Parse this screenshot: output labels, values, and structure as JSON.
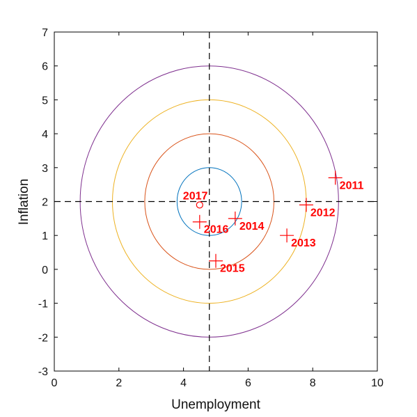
{
  "chart_data": {
    "type": "scatter",
    "title": "",
    "xlabel": "Unemployment",
    "ylabel": "Inflation",
    "xlim": [
      0,
      10
    ],
    "ylim": [
      -3,
      7
    ],
    "xticks": [
      "0",
      "2",
      "4",
      "6",
      "8",
      "10"
    ],
    "yticks": [
      "-3",
      "-2",
      "-1",
      "0",
      "1",
      "2",
      "3",
      "4",
      "5",
      "6",
      "7"
    ],
    "grid": false,
    "center": {
      "x": 4.8,
      "y": 2
    },
    "circles": [
      {
        "radius": 1,
        "color": "#0072bd"
      },
      {
        "radius": 2,
        "color": "#d95319"
      },
      {
        "radius": 3,
        "color": "#edb120"
      },
      {
        "radius": 4,
        "color": "#7e2f8e"
      }
    ],
    "points": [
      {
        "label": "2011",
        "x": 8.7,
        "y": 2.7,
        "marker": "plus"
      },
      {
        "label": "2012",
        "x": 7.8,
        "y": 1.9,
        "marker": "plus"
      },
      {
        "label": "2013",
        "x": 7.2,
        "y": 1.0,
        "marker": "plus"
      },
      {
        "label": "2014",
        "x": 5.6,
        "y": 1.5,
        "marker": "plus"
      },
      {
        "label": "2015",
        "x": 5.0,
        "y": 0.25,
        "marker": "plus"
      },
      {
        "label": "2016",
        "x": 4.5,
        "y": 1.4,
        "marker": "plus"
      },
      {
        "label": "2017",
        "x": 4.5,
        "y": 1.9,
        "marker": "circle"
      }
    ],
    "point_color": "#ff0000"
  }
}
